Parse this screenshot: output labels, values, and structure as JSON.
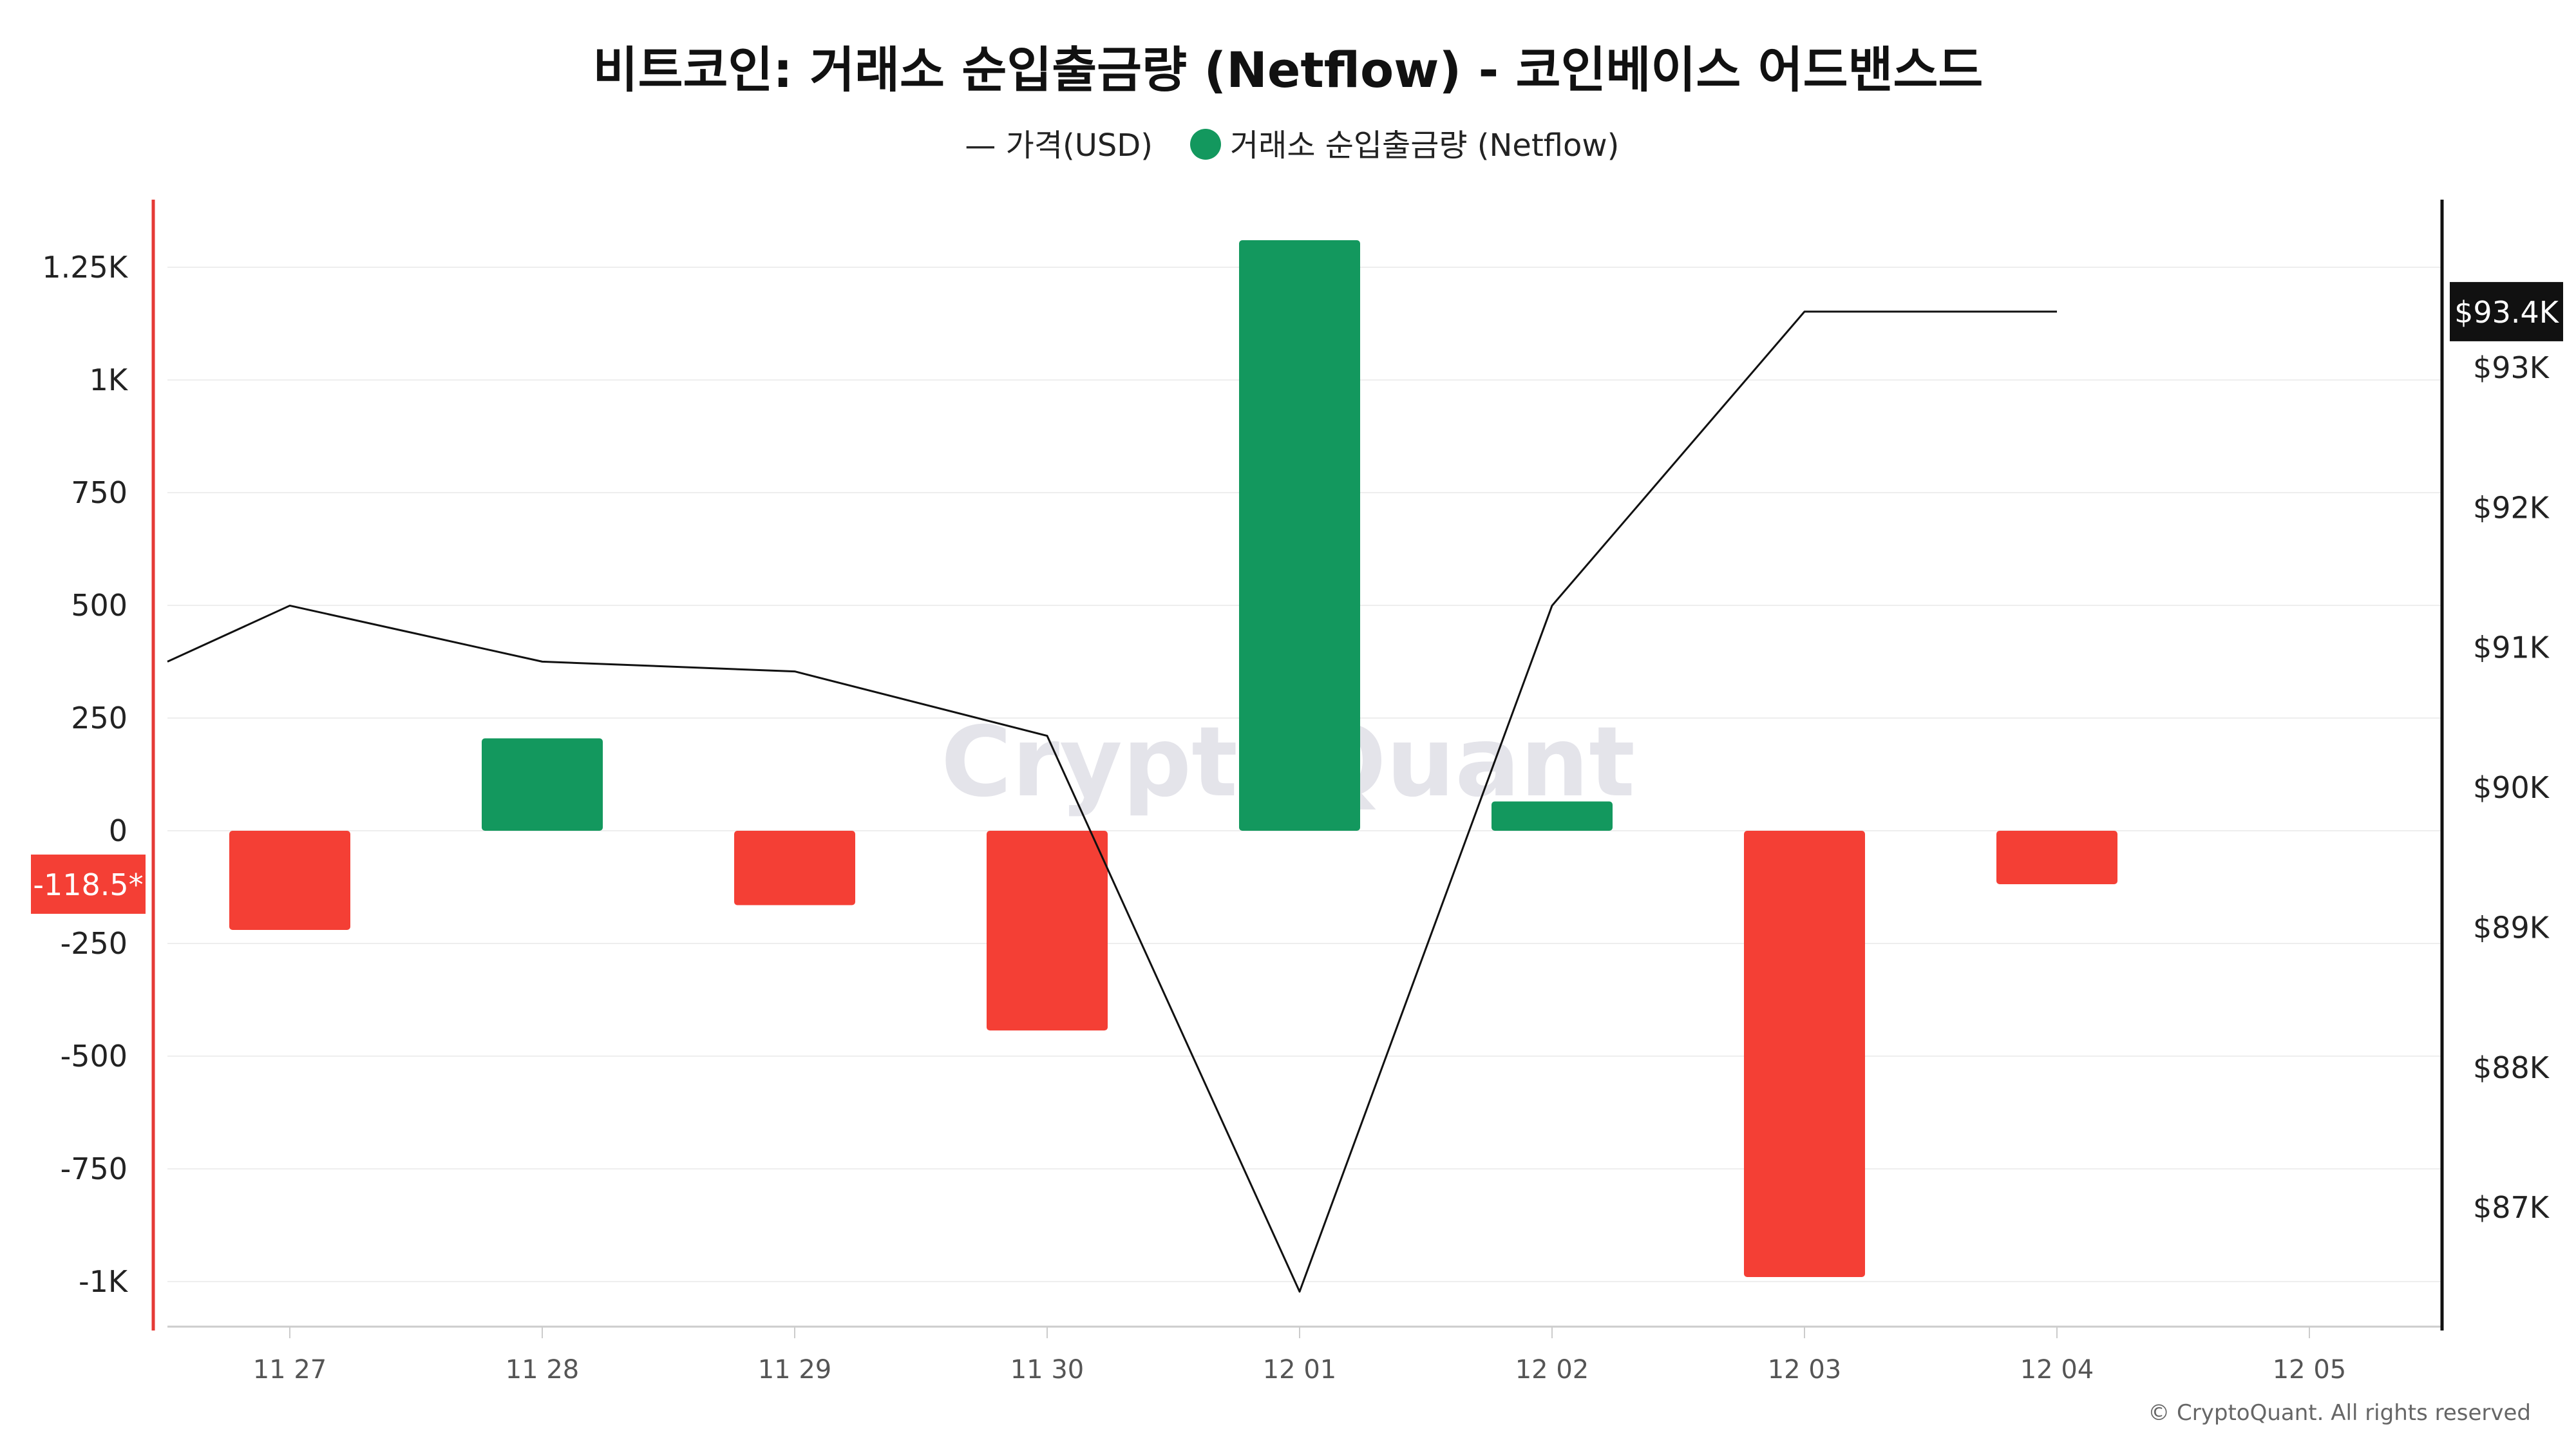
{
  "chart_data": {
    "type": "bar",
    "title": "비트코인: 거래소 순입출금량 (Netflow) - 코인베이스 어드밴스드",
    "categories": [
      "11 27",
      "11 28",
      "11 29",
      "11 30",
      "12 01",
      "12 02",
      "12 03",
      "12 04",
      "12 05"
    ],
    "legend": {
      "placement": "top-center",
      "price_label": "— 가격(USD)",
      "netflow_label": "거래소 순입출금량 (Netflow)"
    },
    "series": [
      {
        "name": "거래소 순입출금량 (Netflow)",
        "kind": "bar",
        "axis": "left",
        "values": [
          -220,
          205,
          -165,
          -443,
          1310,
          65,
          -990,
          -118.5,
          null
        ]
      },
      {
        "name": "가격(USD)",
        "kind": "line",
        "axis": "right",
        "values": [
          91300,
          90900,
          90830,
          90370,
          86400,
          91300,
          93400,
          93400,
          null
        ],
        "start_value": 90900
      }
    ],
    "y_left": {
      "ticks": [
        1250,
        1000,
        750,
        500,
        250,
        0,
        -250,
        -500,
        -750,
        -1000
      ],
      "tick_labels": [
        "1.25K",
        "1K",
        "750",
        "500",
        "250",
        "0",
        "-250",
        "-500",
        "-750",
        "-1K"
      ],
      "ylim": [
        -1100,
        1400
      ]
    },
    "y_right": {
      "ticks": [
        93000,
        92000,
        91000,
        90000,
        89000,
        88000,
        87000
      ],
      "tick_labels": [
        "$93K",
        "$92K",
        "$91K",
        "$90K",
        "$89K",
        "$88K",
        "$87K"
      ],
      "ylim": [
        86150,
        94200
      ]
    },
    "current_netflow_label": "-118.5*",
    "current_price_label": "$93.4K",
    "watermark": "CryptoQuant",
    "footer": "© CryptoQuant. All rights reserved",
    "grid": true,
    "colors": {
      "positive": "#13985e",
      "negative": "#f43f35",
      "line": "#111111",
      "left_axis": "#e53935",
      "right_axis": "#111111",
      "grid": "#eeeeee"
    }
  }
}
